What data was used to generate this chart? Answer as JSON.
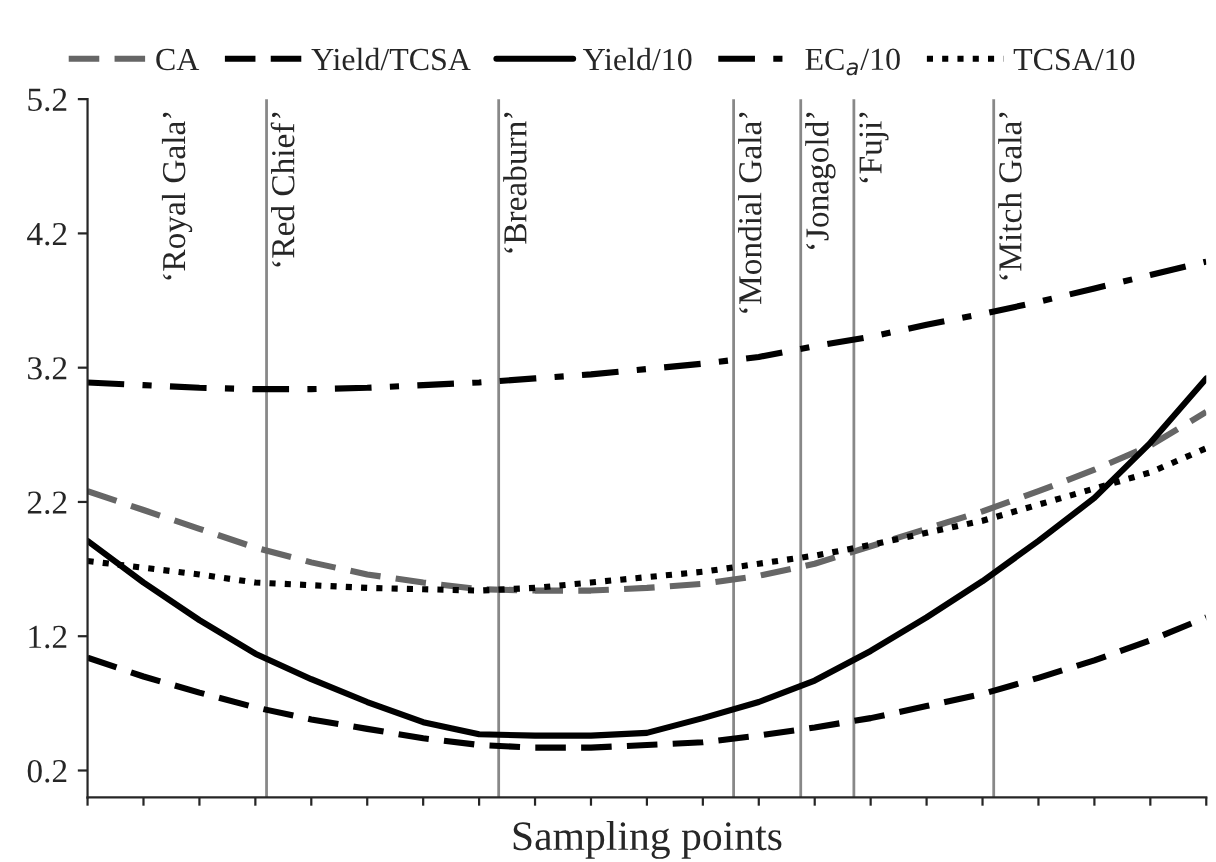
{
  "chart_data": {
    "type": "line",
    "xlabel": "Sampling points",
    "ylim": [
      0.0,
      5.2
    ],
    "yticks": [
      0.2,
      1.2,
      2.2,
      3.2,
      4.2,
      5.2
    ],
    "grid": false,
    "legend": "top",
    "marker": "none",
    "categories": [
      null,
      null,
      null,
      null,
      null,
      null,
      null,
      null,
      null,
      null,
      null,
      null,
      null,
      null,
      null,
      null,
      null,
      null,
      null,
      null,
      null
    ],
    "series": [
      {
        "name": "CA",
        "color": "#666666",
        "line_style": "dashed",
        "values": [
          2.28,
          2.14,
          2.0,
          1.86,
          1.75,
          1.66,
          1.6,
          1.55,
          1.54,
          1.54,
          1.56,
          1.59,
          1.65,
          1.74,
          1.87,
          2.0,
          2.13,
          2.28,
          2.44,
          2.62,
          2.87
        ]
      },
      {
        "name": "Yield/TCSA",
        "color": "#000000",
        "line_style": "dashed",
        "values": [
          1.04,
          0.9,
          0.78,
          0.67,
          0.58,
          0.51,
          0.44,
          0.39,
          0.37,
          0.37,
          0.39,
          0.41,
          0.46,
          0.52,
          0.59,
          0.68,
          0.77,
          0.89,
          1.02,
          1.17,
          1.34
        ]
      },
      {
        "name": "Yield/10",
        "color": "#000000",
        "line_style": "solid",
        "values": [
          1.91,
          1.6,
          1.32,
          1.07,
          0.88,
          0.71,
          0.56,
          0.47,
          0.46,
          0.46,
          0.48,
          0.59,
          0.71,
          0.87,
          1.09,
          1.34,
          1.61,
          1.91,
          2.23,
          2.64,
          3.12
        ]
      },
      {
        "name": "EC$_{a}$/10",
        "color": "#000000",
        "line_style": "dashdot",
        "values": [
          3.09,
          3.07,
          3.05,
          3.04,
          3.04,
          3.05,
          3.07,
          3.09,
          3.12,
          3.15,
          3.19,
          3.23,
          3.28,
          3.36,
          3.43,
          3.52,
          3.6,
          3.69,
          3.79,
          3.89,
          3.99
        ]
      },
      {
        "name": "TCSA/10",
        "color": "#000000",
        "line_style": "dotted",
        "values": [
          1.76,
          1.71,
          1.66,
          1.6,
          1.58,
          1.56,
          1.55,
          1.54,
          1.56,
          1.6,
          1.64,
          1.68,
          1.74,
          1.8,
          1.88,
          1.97,
          2.06,
          2.18,
          2.3,
          2.42,
          2.6
        ]
      }
    ],
    "annotations": [
      "‘Royal Gala’",
      "‘Red Chief’",
      "‘Breaburn’",
      "‘Mondial Gala’",
      "‘Jonagold’",
      "‘Fuji’",
      "‘Mitch Gala’"
    ]
  }
}
